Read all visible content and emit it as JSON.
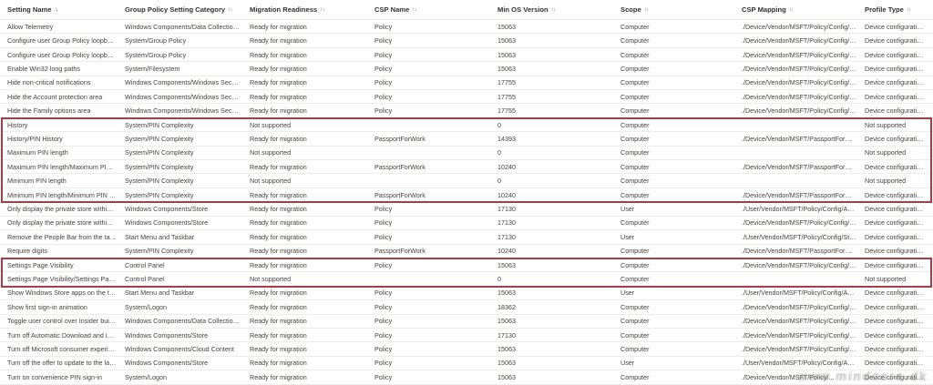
{
  "table": {
    "columns": [
      {
        "key": "setting_name",
        "label": "Setting Name",
        "sort_icon": "↑."
      },
      {
        "key": "category",
        "label": "Group Policy Setting Category",
        "sort_icon": "↑↓"
      },
      {
        "key": "readiness",
        "label": "Migration Readiness",
        "sort_icon": "↑↓"
      },
      {
        "key": "csp_name",
        "label": "CSP Name",
        "sort_icon": "↑↓"
      },
      {
        "key": "min_os",
        "label": "Min OS Version",
        "sort_icon": "↑↓"
      },
      {
        "key": "scope",
        "label": "Scope",
        "sort_icon": "↑↓"
      },
      {
        "key": "csp_mapping",
        "label": "CSP Mapping",
        "sort_icon": "↑↓"
      },
      {
        "key": "profile_type",
        "label": "Profile Type",
        "sort_icon": "↑↓"
      }
    ],
    "rows": [
      {
        "setting_name": "Allow Telemetry",
        "category": "Windows Components/Data Collection and P...",
        "readiness": "Ready for migration",
        "csp_name": "Policy",
        "min_os": "15063",
        "scope": "Computer",
        "csp_mapping": "./Device/Vendor/MSFT/Policy/Config/System/...",
        "profile_type": "Device configuration: All"
      },
      {
        "setting_name": "Configure user Group Policy loopback proces...",
        "category": "System/Group Policy",
        "readiness": "Ready for migration",
        "csp_name": "Policy",
        "min_os": "15063",
        "scope": "Computer",
        "csp_mapping": "./Device/Vendor/MSFT/Policy/Config/ADMX_...",
        "profile_type": "Device configuration: All"
      },
      {
        "setting_name": "Configure user Group Policy loopback proces...",
        "category": "System/Group Policy",
        "readiness": "Ready for migration",
        "csp_name": "Policy",
        "min_os": "15063",
        "scope": "Computer",
        "csp_mapping": "./Device/Vendor/MSFT/Policy/Config/ADMX_...",
        "profile_type": "Device configuration: All"
      },
      {
        "setting_name": "Enable Win32 long paths",
        "category": "System/Filesystem",
        "readiness": "Ready for migration",
        "csp_name": "Policy",
        "min_os": "15063",
        "scope": "Computer",
        "csp_mapping": "./Device/Vendor/MSFT/Policy/Config/ADMX_...",
        "profile_type": "Device configuration: All"
      },
      {
        "setting_name": "Hide non-critical notifications",
        "category": "Windows Components/Windows Security/No...",
        "readiness": "Ready for migration",
        "csp_name": "Policy",
        "min_os": "17755",
        "scope": "Computer",
        "csp_mapping": "./Device/Vendor/MSFT/Policy/Config/Windo...",
        "profile_type": "Device configuration: All"
      },
      {
        "setting_name": "Hide the Account protection area",
        "category": "Windows Components/Windows Security/Ac...",
        "readiness": "Ready for migration",
        "csp_name": "Policy",
        "min_os": "17755",
        "scope": "Computer",
        "csp_mapping": "./Device/Vendor/MSFT/Policy/Config/Windo...",
        "profile_type": "Device configuration: All"
      },
      {
        "setting_name": "Hide the Family options area",
        "category": "Windows Components/Windows Security/Fa...",
        "readiness": "Ready for migration",
        "csp_name": "Policy",
        "min_os": "17755",
        "scope": "Computer",
        "csp_mapping": "./Device/Vendor/MSFT/Policy/Config/Windo...",
        "profile_type": "Device configuration: All"
      },
      {
        "setting_name": "History",
        "category": "System/PIN Complexity",
        "readiness": "Not supported",
        "csp_name": "",
        "min_os": "0",
        "scope": "Computer",
        "csp_mapping": "",
        "profile_type": "Not supported"
      },
      {
        "setting_name": "History/PIN History",
        "category": "System/PIN Complexity",
        "readiness": "Ready for migration",
        "csp_name": "PassportForWork",
        "min_os": "14393",
        "scope": "Computer",
        "csp_mapping": "./Device/Vendor/MSFT/PassportForWork/e87...",
        "profile_type": "Device configuration: All"
      },
      {
        "setting_name": "Maximum PIN length",
        "category": "System/PIN Complexity",
        "readiness": "Not supported",
        "csp_name": "",
        "min_os": "0",
        "scope": "Computer",
        "csp_mapping": "",
        "profile_type": "Not supported"
      },
      {
        "setting_name": "Maximum PIN length/Maximum PIN length",
        "category": "System/PIN Complexity",
        "readiness": "Ready for migration",
        "csp_name": "PassportForWork",
        "min_os": "10240",
        "scope": "Computer",
        "csp_mapping": "./Device/Vendor/MSFT/PassportForWork/e87...",
        "profile_type": "Device configuration: All"
      },
      {
        "setting_name": "Minimum PIN length",
        "category": "System/PIN Complexity",
        "readiness": "Not supported",
        "csp_name": "",
        "min_os": "0",
        "scope": "Computer",
        "csp_mapping": "",
        "profile_type": "Not supported"
      },
      {
        "setting_name": "Minimum PIN length/Minimum PIN length",
        "category": "System/PIN Complexity",
        "readiness": "Ready for migration",
        "csp_name": "PassportForWork",
        "min_os": "10240",
        "scope": "Computer",
        "csp_mapping": "./Device/Vendor/MSFT/PassportForWork/e87...",
        "profile_type": "Device configuration: All"
      },
      {
        "setting_name": "Only display the private store within the Micr...",
        "category": "Windows Components/Store",
        "readiness": "Ready for migration",
        "csp_name": "Policy",
        "min_os": "17130",
        "scope": "User",
        "csp_mapping": "./User/Vendor/MSFT/Policy/Config/Applicatio...",
        "profile_type": "Device configuration: All"
      },
      {
        "setting_name": "Only display the private store within the Micr...",
        "category": "Windows Components/Store",
        "readiness": "Ready for migration",
        "csp_name": "Policy",
        "min_os": "17130",
        "scope": "Computer",
        "csp_mapping": "./Device/Vendor/MSFT/Policy/Config/Applica...",
        "profile_type": "Device configuration: All"
      },
      {
        "setting_name": "Remove the People Bar from the taskbar",
        "category": "Start Menu and Taskbar",
        "readiness": "Ready for migration",
        "csp_name": "Policy",
        "min_os": "17130",
        "scope": "User",
        "csp_mapping": "./User/Vendor/MSFT/Policy/Config/Start/Hide...",
        "profile_type": "Device configuration: All"
      },
      {
        "setting_name": "Require digits",
        "category": "System/PIN Complexity",
        "readiness": "Ready for migration",
        "csp_name": "PassportForWork",
        "min_os": "10240",
        "scope": "Computer",
        "csp_mapping": "./Device/Vendor/MSFT/PassportForWork/e87...",
        "profile_type": "Device configuration: All"
      },
      {
        "setting_name": "Settings Page Visibility",
        "category": "Control Panel",
        "readiness": "Ready for migration",
        "csp_name": "Policy",
        "min_os": "15063",
        "scope": "Computer",
        "csp_mapping": "./Device/Vendor/MSFT/Policy/Config/Settings...",
        "profile_type": "Device configuration: All"
      },
      {
        "setting_name": "Settings Page Visibility/Settings Page Visibility:",
        "category": "Control Panel",
        "readiness": "Not supported",
        "csp_name": "",
        "min_os": "0",
        "scope": "Computer",
        "csp_mapping": "",
        "profile_type": "Not supported"
      },
      {
        "setting_name": "Show Windows Store apps on the taskbar",
        "category": "Start Menu and Taskbar",
        "readiness": "Ready for migration",
        "csp_name": "Policy",
        "min_os": "15063",
        "scope": "User",
        "csp_mapping": "./User/Vendor/MSFT/Policy/Config/ADMX_Ta...",
        "profile_type": "Device configuration: All"
      },
      {
        "setting_name": "Show first sign-in animation",
        "category": "System/Logon",
        "readiness": "Ready for migration",
        "csp_name": "Policy",
        "min_os": "18362",
        "scope": "Computer",
        "csp_mapping": "./Device/Vendor/MSFT/Policy/Config/Windo...",
        "profile_type": "Device configuration: All"
      },
      {
        "setting_name": "Toggle user control over Insider builds",
        "category": "Windows Components/Data Collection and P...",
        "readiness": "Ready for migration",
        "csp_name": "Policy",
        "min_os": "15063",
        "scope": "Computer",
        "csp_mapping": "./Device/Vendor/MSFT/Policy/Config/System/...",
        "profile_type": "Device configuration: All"
      },
      {
        "setting_name": "Turn off Automatic Download and install of u...",
        "category": "Windows Components/Store",
        "readiness": "Ready for migration",
        "csp_name": "Policy",
        "min_os": "17130",
        "scope": "Computer",
        "csp_mapping": "./Device/Vendor/MSFT/Policy/Config/Applica...",
        "profile_type": "Device configuration: All"
      },
      {
        "setting_name": "Turn off Microsoft consumer experiences",
        "category": "Windows Components/Cloud Content",
        "readiness": "Ready for migration",
        "csp_name": "Policy",
        "min_os": "15063",
        "scope": "Computer",
        "csp_mapping": "./Device/Vendor/MSFT/Policy/Config/Experie...",
        "profile_type": "Device configuration: All"
      },
      {
        "setting_name": "Turn off the offer to update to the latest versi...",
        "category": "Windows Components/Store",
        "readiness": "Ready for migration",
        "csp_name": "Policy",
        "min_os": "15063",
        "scope": "User",
        "csp_mapping": "./User/Vendor/MSFT/Policy/Config/ADMX_Wi...",
        "profile_type": "Device configuration: All"
      },
      {
        "setting_name": "Turn on convenience PIN sign-in",
        "category": "System/Logon",
        "readiness": "Ready for migration",
        "csp_name": "Policy",
        "min_os": "15063",
        "scope": "Computer",
        "csp_mapping": "./Device/Vendor/MSFT/Policy/...",
        "profile_type": "Device configuration: All"
      }
    ],
    "highlight_color": "#aa3c46",
    "highlights": [
      {
        "first_row": 8,
        "last_row": 13
      },
      {
        "first_row": 18,
        "last_row": 19
      }
    ]
  },
  "watermark": {
    "text": "www.mindcore.dk"
  }
}
